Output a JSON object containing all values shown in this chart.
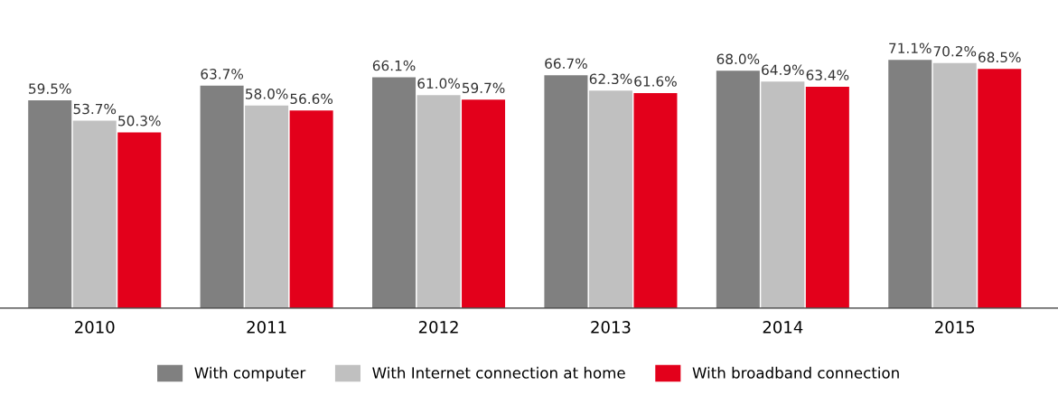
{
  "chart_data": {
    "type": "bar",
    "categories": [
      "2010",
      "2011",
      "2012",
      "2013",
      "2014",
      "2015"
    ],
    "series": [
      {
        "name": "With computer",
        "color": "#808080",
        "values": [
          59.5,
          63.7,
          66.1,
          66.7,
          68.0,
          71.1
        ],
        "value_labels": [
          "59.5%",
          "63.7%",
          "66.1%",
          "66.7%",
          "68.0%",
          "71.1%"
        ]
      },
      {
        "name": "With Internet connection at home",
        "color": "#c0c0c0",
        "values": [
          53.7,
          58.0,
          61.0,
          62.3,
          64.9,
          70.2
        ],
        "value_labels": [
          "53.7%",
          "58.0%",
          "61.0%",
          "62.3%",
          "64.9%",
          "70.2%"
        ]
      },
      {
        "name": "With broadband connection",
        "color": "#e3001b",
        "values": [
          50.3,
          56.6,
          59.7,
          61.6,
          63.4,
          68.5
        ],
        "value_labels": [
          "50.3%",
          "56.6%",
          "59.7%",
          "61.6%",
          "63.4%",
          "68.5%"
        ]
      }
    ],
    "tick_labels": "x",
    "grid": false,
    "legend": "bottom"
  }
}
